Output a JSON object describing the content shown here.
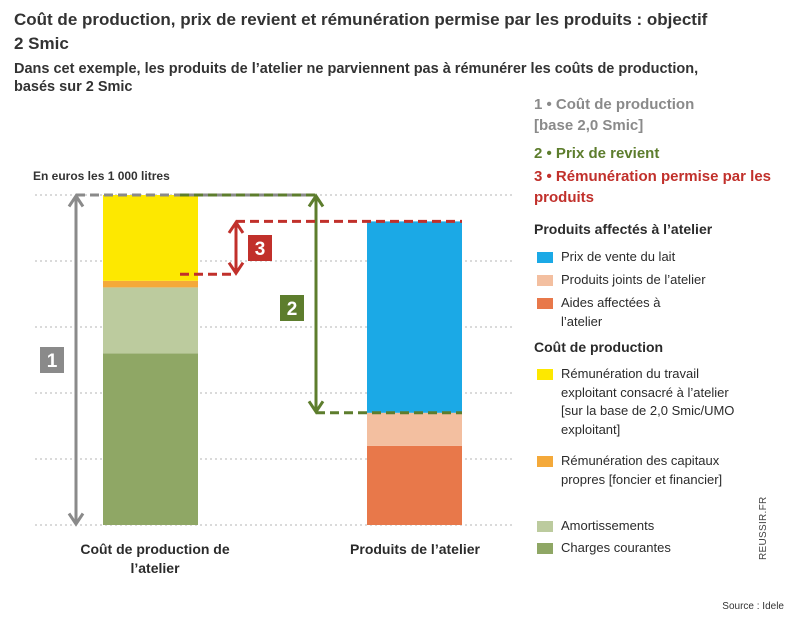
{
  "title": "Coût de production, prix de revient et rémunération permise par les produits : objectif 2 Smic",
  "subtitle": "Dans cet exemple, les produits de l’atelier ne parviennent pas à rémunérer les coûts de production, basés sur 2 Smic",
  "unit_label": "En euros les 1 000 litres",
  "keys": {
    "k1": {
      "num": "1",
      "text": "• Coût de production [base 2,0 Smic]",
      "color": "#8a8a8a"
    },
    "k2": {
      "num": "2",
      "text": "• Prix de revient",
      "color": "#5d7d2d"
    },
    "k3": {
      "num": "3",
      "text": "• Rémunération permise par les produits",
      "color": "#c1302b"
    }
  },
  "legend": {
    "section_products": "Produits affectés à l’atelier",
    "section_costs": "Coût de production",
    "items": [
      {
        "label": "Prix de vente du lait",
        "color": "#1ba9e6"
      },
      {
        "label": "Produits joints de l’atelier",
        "color": "#f3bfa0"
      },
      {
        "label": "Aides affectées à l’atelier",
        "color": "#e8784a"
      },
      {
        "label": "Rémunération du travail exploitant consacré à l’atelier [sur la base de 2,0 Smic/UMO exploitant]",
        "color": "#fde800"
      },
      {
        "label": "Rémunération des capitaux propres [foncier et financier]",
        "color": "#f4a93a"
      },
      {
        "label": "Amortissements",
        "color": "#bccb9e"
      },
      {
        "label": "Charges courantes",
        "color": "#8fa765"
      }
    ]
  },
  "chart_data": {
    "type": "bar",
    "stacked": true,
    "categories": [
      "Coût de production de l’atelier",
      "Produits de l’atelier"
    ],
    "ylim": [
      0,
      6
    ],
    "grid": true,
    "series": [
      {
        "name": "Charges courantes",
        "values": [
          2.6,
          0
        ],
        "color": "#8fa765"
      },
      {
        "name": "Amortissements",
        "values": [
          1.0,
          0
        ],
        "color": "#bccb9e"
      },
      {
        "name": "Rémunération des capitaux propres [foncier et financier]",
        "values": [
          0.1,
          0
        ],
        "color": "#f4a93a"
      },
      {
        "name": "Rémunération du travail exploitant consacré à l’atelier [sur la base de 2,0 Smic/UMO exploitant]",
        "values": [
          1.3,
          0
        ],
        "color": "#fde800"
      },
      {
        "name": "Aides affectées à l’atelier",
        "values": [
          0,
          1.2
        ],
        "color": "#e8784a"
      },
      {
        "name": "Produits joints de l’atelier",
        "values": [
          0,
          0.5
        ],
        "color": "#f3bfa0"
      },
      {
        "name": "Prix de vente du lait",
        "values": [
          0,
          2.9
        ],
        "color": "#1ba9e6"
      }
    ],
    "markers": [
      {
        "label": "1",
        "from": 0,
        "to": 5.0,
        "color": "#8a8a8a"
      },
      {
        "label": "2",
        "from": 1.7,
        "to": 5.0,
        "color": "#5d7d2d"
      },
      {
        "label": "3",
        "from": 3.8,
        "to": 4.6,
        "color": "#c1302b"
      }
    ]
  },
  "credit": "REUSSIR.FR",
  "source": "Source : Idele"
}
